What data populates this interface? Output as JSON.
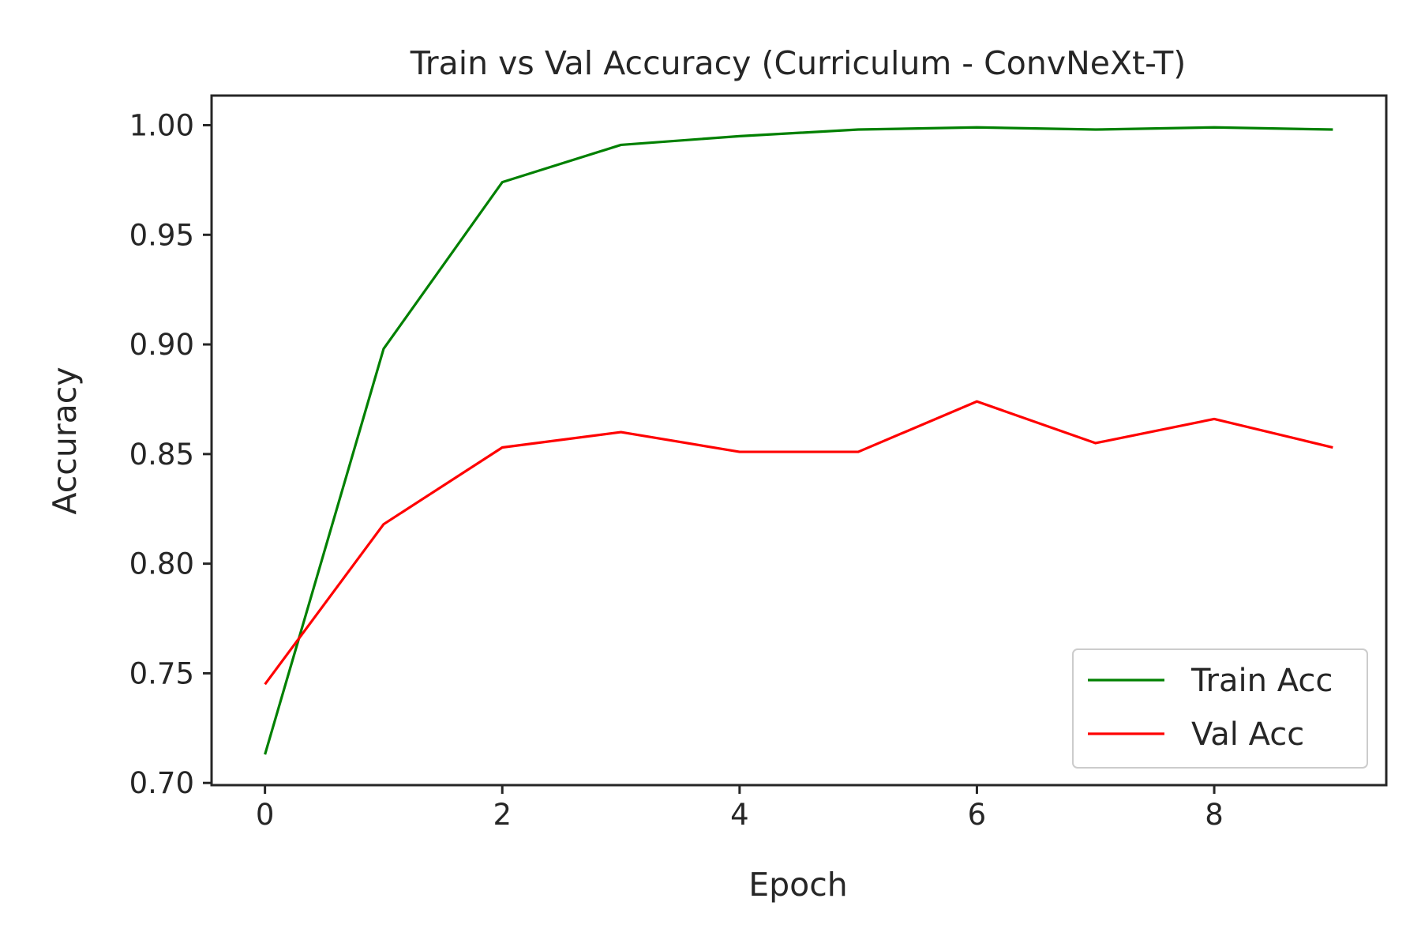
{
  "chart_data": {
    "type": "line",
    "title": "Train vs Val Accuracy (Curriculum - ConvNeXt-T)",
    "xlabel": "Epoch",
    "ylabel": "Accuracy",
    "x": [
      0,
      1,
      2,
      3,
      4,
      5,
      6,
      7,
      8,
      9
    ],
    "xlim": [
      -0.45,
      9.45
    ],
    "ylim": [
      0.699,
      1.0135
    ],
    "xticks": [
      0,
      2,
      4,
      6,
      8
    ],
    "yticks": [
      0.7,
      0.75,
      0.8,
      0.85,
      0.9,
      0.95,
      1.0
    ],
    "xtick_labels": [
      "0",
      "2",
      "4",
      "6",
      "8"
    ],
    "ytick_labels": [
      "0.70",
      "0.75",
      "0.80",
      "0.85",
      "0.90",
      "0.95",
      "1.00"
    ],
    "grid": false,
    "legend_position": "lower-right",
    "series": [
      {
        "name": "Train Acc",
        "color": "#008000",
        "values": [
          0.713,
          0.898,
          0.974,
          0.991,
          0.995,
          0.998,
          0.999,
          0.998,
          0.999,
          0.998
        ]
      },
      {
        "name": "Val Acc",
        "color": "#ff0000",
        "values": [
          0.745,
          0.818,
          0.853,
          0.86,
          0.851,
          0.851,
          0.874,
          0.855,
          0.866,
          0.853
        ]
      }
    ]
  }
}
